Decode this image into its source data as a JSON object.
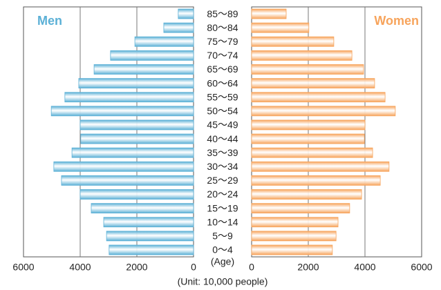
{
  "chart_data": {
    "type": "pyramid",
    "categories": [
      "85〜89",
      "80〜84",
      "75〜79",
      "70〜74",
      "65〜69",
      "60〜64",
      "55〜59",
      "50〜54",
      "45〜49",
      "40〜44",
      "35〜39",
      "30〜34",
      "25〜29",
      "20〜24",
      "15〜19",
      "10〜14",
      "5〜9",
      "0〜4"
    ],
    "series": [
      {
        "name": "Men",
        "color": "#5bb0d6",
        "values": [
          540,
          1050,
          2070,
          2930,
          3510,
          4050,
          4540,
          5020,
          4000,
          3980,
          4290,
          4930,
          4660,
          4000,
          3610,
          3170,
          3070,
          2980
        ]
      },
      {
        "name": "Women",
        "color": "#f7a45c",
        "values": [
          1220,
          2020,
          2900,
          3540,
          3950,
          4340,
          4710,
          5070,
          4000,
          3980,
          4270,
          4850,
          4540,
          3880,
          3460,
          3050,
          2980,
          2850
        ]
      }
    ],
    "xlim": [
      0,
      6000
    ],
    "xticks": [
      0,
      2000,
      4000,
      6000
    ],
    "grid": true,
    "y_label": "(Age)",
    "x_label": "(Unit: 10,000 people)"
  }
}
